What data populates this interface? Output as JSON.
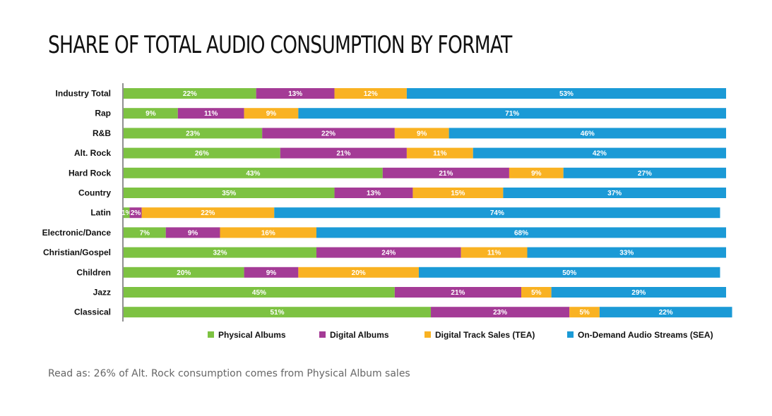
{
  "chart_data": {
    "type": "bar",
    "orientation": "horizontal",
    "stacked": true,
    "title": "SHARE OF TOTAL AUDIO CONSUMPTION BY FORMAT",
    "categories": [
      "Industry Total",
      "Rap",
      "R&B",
      "Alt. Rock",
      "Hard Rock",
      "Country",
      "Latin",
      "Electronic/Dance",
      "Christian/Gospel",
      "Children",
      "Jazz",
      "Classical"
    ],
    "series": [
      {
        "name": "Physical Albums",
        "color": "#7dc242",
        "values": [
          22,
          9,
          23,
          26,
          43,
          35,
          1,
          7,
          32,
          20,
          45,
          51
        ]
      },
      {
        "name": "Digital Albums",
        "color": "#a43b96",
        "values": [
          13,
          11,
          22,
          21,
          21,
          13,
          2,
          9,
          24,
          9,
          21,
          23
        ]
      },
      {
        "name": "Digital Track Sales (TEA)",
        "color": "#f9b222",
        "values": [
          12,
          9,
          9,
          11,
          9,
          15,
          22,
          16,
          11,
          20,
          5,
          5
        ]
      },
      {
        "name": "On-Demand Audio Streams (SEA)",
        "color": "#1b9ad6",
        "values": [
          53,
          71,
          46,
          42,
          27,
          37,
          74,
          68,
          33,
          50,
          29,
          22
        ]
      }
    ],
    "value_suffix": "%",
    "xlim": [
      0,
      100
    ],
    "legend_position": "bottom"
  },
  "footnote": "Read as: 26% of Alt. Rock consumption comes from Physical Album sales"
}
